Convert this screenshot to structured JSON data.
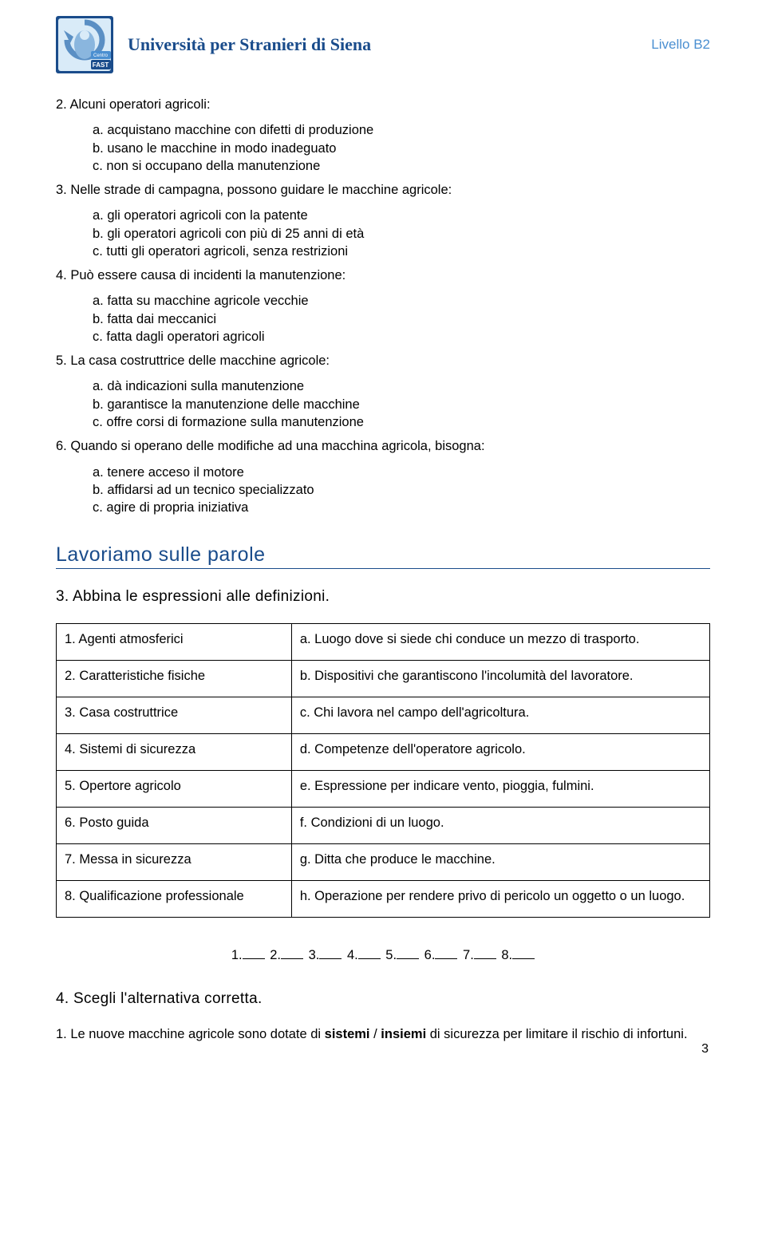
{
  "header": {
    "title": "Università per Stranieri di Siena",
    "level": "Livello B2",
    "logo": {
      "outer_bg": "#1a4c8b",
      "inner_bg": "#d9ebf8",
      "badge_bg": "#4a8fd1",
      "badge_label": "Centro",
      "badge_sub": "FAST"
    }
  },
  "questions": [
    {
      "num": "2.",
      "text": "Alcuni operatori agricoli:",
      "options": [
        "a. acquistano macchine con difetti di produzione",
        "b. usano le macchine in modo inadeguato",
        "c. non si occupano della manutenzione"
      ]
    },
    {
      "num": "3.",
      "text": "Nelle strade di campagna, possono guidare le macchine agricole:",
      "options": [
        "a. gli operatori agricoli con la patente",
        "b. gli operatori agricoli con più di 25 anni di età",
        "c. tutti gli operatori agricoli, senza restrizioni"
      ]
    },
    {
      "num": "4.",
      "text": "Può essere causa di incidenti la manutenzione:",
      "options": [
        "a. fatta su macchine agricole vecchie",
        "b. fatta dai meccanici",
        "c. fatta dagli operatori agricoli"
      ]
    },
    {
      "num": "5.",
      "text": "La casa costruttrice delle macchine agricole:",
      "options": [
        "a. dà indicazioni sulla manutenzione",
        "b. garantisce la manutenzione delle macchine",
        "c. offre corsi di formazione sulla manutenzione"
      ]
    },
    {
      "num": "6.",
      "text": "Quando si operano delle modifiche ad una macchina agricola, bisogna:",
      "options": [
        "a. tenere acceso il motore",
        "b. affidarsi ad un tecnico specializzato",
        "c. agire di propria iniziativa"
      ]
    }
  ],
  "section": {
    "title": "Lavoriamo sulle parole",
    "exercise3_heading": "3. Abbina le espressioni alle definizioni.",
    "match_rows": [
      {
        "left": "1. Agenti atmosferici",
        "right": "a. Luogo dove si siede chi conduce un mezzo di trasporto."
      },
      {
        "left": "2. Caratteristiche fisiche",
        "right": "b. Dispositivi che garantiscono l'incolumità del lavoratore."
      },
      {
        "left": "3. Casa costruttrice",
        "right": "c. Chi lavora nel campo dell'agricoltura."
      },
      {
        "left": "4. Sistemi di sicurezza",
        "right": "d. Competenze dell'operatore agricolo."
      },
      {
        "left": "5. Opertore agricolo",
        "right": "e. Espressione per indicare vento, pioggia, fulmini."
      },
      {
        "left": "6. Posto guida",
        "right": "f. Condizioni di un luogo."
      },
      {
        "left": "7. Messa in sicurezza",
        "right": "g. Ditta che produce le macchine."
      },
      {
        "left": "8. Qualificazione professionale",
        "right": "h. Operazione per rendere privo di pericolo un oggetto o un luogo."
      }
    ],
    "answer_nums": [
      "1.",
      "2.",
      "3.",
      "4.",
      "5.",
      "6.",
      "7.",
      "8."
    ],
    "exercise4_heading": "4. Scegli l'alternativa corretta.",
    "sentence1": {
      "num": "1.",
      "prefix": "Le nuove macchine agricole sono dotate di ",
      "bold1": "sistemi",
      "sep": " / ",
      "bold2": "insiemi",
      "suffix": " di sicurezza per limitare il rischio di infortuni."
    }
  },
  "page_number": "3"
}
